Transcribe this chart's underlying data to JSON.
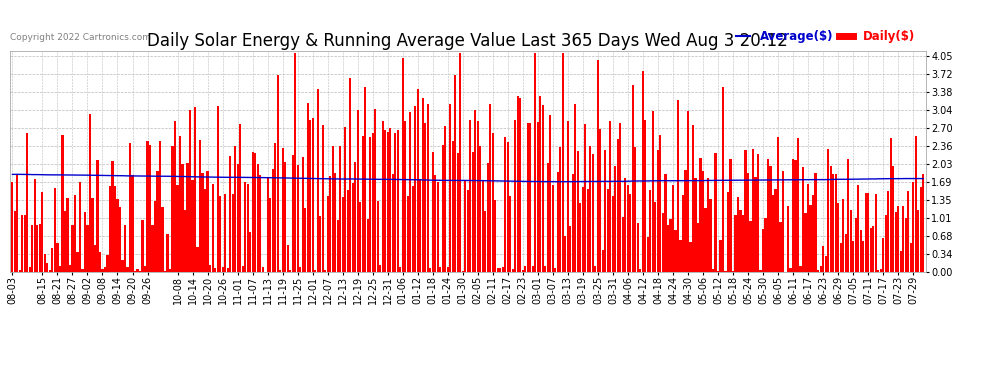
{
  "title": "Daily Solar Energy & Running Average Value Last 365 Days Wed Aug 3 20:12",
  "copyright_text": "Copyright 2022 Cartronics.com",
  "legend_avg": "Average($)",
  "legend_daily": "Daily($)",
  "bar_color": "#ff0000",
  "avg_line_color": "#0000cc",
  "background_color": "#ffffff",
  "plot_bg_color": "#ffffff",
  "grid_color": "#bbbbbb",
  "yticks": [
    0.0,
    0.34,
    0.68,
    1.01,
    1.35,
    1.69,
    2.03,
    2.36,
    2.7,
    3.04,
    3.38,
    3.72,
    4.05
  ],
  "ylim": [
    0.0,
    4.15
  ],
  "x_labels": [
    "08-03",
    "08-15",
    "08-21",
    "08-27",
    "09-02",
    "09-08",
    "09-14",
    "09-20",
    "09-26",
    "10-08",
    "10-14",
    "10-20",
    "10-26",
    "11-01",
    "11-07",
    "11-13",
    "11-19",
    "11-25",
    "12-01",
    "12-07",
    "12-13",
    "12-19",
    "12-25",
    "12-31",
    "01-06",
    "01-12",
    "01-18",
    "01-24",
    "01-30",
    "02-05",
    "02-11",
    "02-17",
    "02-23",
    "03-01",
    "03-07",
    "03-13",
    "03-19",
    "03-25",
    "03-31",
    "04-06",
    "04-12",
    "04-18",
    "04-24",
    "04-30",
    "05-06",
    "05-12",
    "05-18",
    "05-24",
    "05-30",
    "06-05",
    "06-11",
    "06-17",
    "06-23",
    "06-29",
    "07-05",
    "07-11",
    "07-17",
    "07-23",
    "07-29"
  ],
  "title_fontsize": 12,
  "tick_fontsize": 7,
  "copyright_fontsize": 6.5,
  "legend_fontsize": 8.5
}
